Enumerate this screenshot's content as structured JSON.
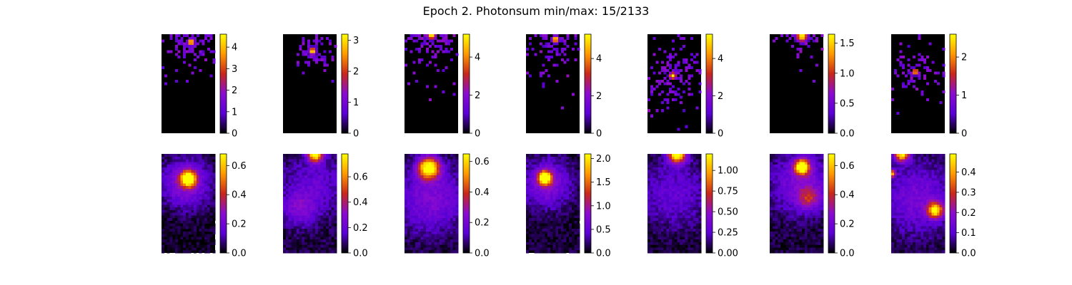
{
  "figure": {
    "title": "Epoch 2. Photonsum min/max: 15/2133",
    "colormap": "gnuplot",
    "colormap_stops": [
      "#000000",
      "#5a00d6",
      "#8a0bd0",
      "#c8281c",
      "#ff9900",
      "#ffff00"
    ]
  },
  "chart_data": [
    {
      "type": "heatmap",
      "row": 1,
      "col": 1,
      "axes_visible": false,
      "colorbar": {
        "range": [
          0,
          4.6
        ],
        "ticks": [
          "0",
          "1",
          "2",
          "3",
          "4"
        ],
        "tick_values": [
          0,
          1,
          2,
          3,
          4
        ]
      },
      "blobs": [
        {
          "cx": 0.55,
          "cy": 0.08,
          "sigma": 0.05,
          "peak": 4.6
        }
      ],
      "spread": 0.22,
      "sparse": true,
      "seed": 11
    },
    {
      "type": "heatmap",
      "row": 1,
      "col": 2,
      "axes_visible": false,
      "colorbar": {
        "range": [
          0,
          3.2
        ],
        "ticks": [
          "0",
          "1",
          "2",
          "3"
        ],
        "tick_values": [
          0,
          1,
          2,
          3
        ]
      },
      "blobs": [
        {
          "cx": 0.55,
          "cy": 0.17,
          "sigma": 0.05,
          "peak": 3.2
        }
      ],
      "spread": 0.15,
      "sparse": true,
      "seed": 23
    },
    {
      "type": "heatmap",
      "row": 1,
      "col": 3,
      "axes_visible": false,
      "colorbar": {
        "range": [
          0,
          5.2
        ],
        "ticks": [
          "0",
          "2",
          "4"
        ],
        "tick_values": [
          0,
          2,
          4
        ]
      },
      "blobs": [
        {
          "cx": 0.5,
          "cy": 0.01,
          "sigma": 0.06,
          "peak": 5.2
        }
      ],
      "spread": 0.28,
      "sparse": true,
      "seed": 37
    },
    {
      "type": "heatmap",
      "row": 1,
      "col": 4,
      "axes_visible": false,
      "colorbar": {
        "range": [
          0,
          5.3
        ],
        "ticks": [
          "0",
          "2",
          "4"
        ],
        "tick_values": [
          0,
          2,
          4
        ]
      },
      "blobs": [
        {
          "cx": 0.55,
          "cy": 0.05,
          "sigma": 0.05,
          "peak": 5.3
        }
      ],
      "spread": 0.26,
      "sparse": true,
      "seed": 41
    },
    {
      "type": "heatmap",
      "row": 1,
      "col": 5,
      "axes_visible": false,
      "colorbar": {
        "range": [
          0,
          5.3
        ],
        "ticks": [
          "0",
          "2",
          "4"
        ],
        "tick_values": [
          0,
          2,
          4
        ]
      },
      "blobs": [
        {
          "cx": 0.47,
          "cy": 0.42,
          "sigma": 0.05,
          "peak": 5.3
        }
      ],
      "spread": 0.28,
      "sparse": true,
      "seed": 53
    },
    {
      "type": "heatmap",
      "row": 1,
      "col": 6,
      "axes_visible": false,
      "colorbar": {
        "range": [
          0,
          1.65
        ],
        "ticks": [
          "0.0",
          "0.5",
          "1.0",
          "1.5"
        ],
        "tick_values": [
          0.0,
          0.5,
          1.0,
          1.5
        ]
      },
      "blobs": [
        {
          "cx": 0.6,
          "cy": 0.02,
          "sigma": 0.08,
          "peak": 1.65
        }
      ],
      "spread": 0.16,
      "sparse": true,
      "seed": 67
    },
    {
      "type": "heatmap",
      "row": 1,
      "col": 7,
      "axes_visible": false,
      "colorbar": {
        "range": [
          0,
          2.6
        ],
        "ticks": [
          "0",
          "1",
          "2"
        ],
        "tick_values": [
          0,
          1,
          2
        ]
      },
      "blobs": [
        {
          "cx": 0.45,
          "cy": 0.38,
          "sigma": 0.04,
          "peak": 2.6
        }
      ],
      "spread": 0.2,
      "sparse": true,
      "seed": 71
    },
    {
      "type": "heatmap",
      "row": 2,
      "col": 1,
      "axes_visible": false,
      "colorbar": {
        "range": [
          0,
          0.68
        ],
        "ticks": [
          "0.0",
          "0.2",
          "0.4",
          "0.6"
        ],
        "tick_values": [
          0.0,
          0.2,
          0.4,
          0.6
        ]
      },
      "blobs": [
        {
          "cx": 0.5,
          "cy": 0.25,
          "sigma": 0.1,
          "peak": 0.68
        },
        {
          "cx": 0.45,
          "cy": 0.3,
          "sigma": 0.32,
          "peak": 0.26
        }
      ],
      "floor": 0.03,
      "sparse": false,
      "seed": 83
    },
    {
      "type": "heatmap",
      "row": 2,
      "col": 2,
      "axes_visible": false,
      "colorbar": {
        "range": [
          0,
          0.78
        ],
        "ticks": [
          "0.0",
          "0.2",
          "0.4",
          "0.6"
        ],
        "tick_values": [
          0.0,
          0.2,
          0.4,
          0.6
        ]
      },
      "blobs": [
        {
          "cx": 0.6,
          "cy": 0.0,
          "sigma": 0.1,
          "peak": 0.78
        },
        {
          "cx": 0.3,
          "cy": 0.55,
          "sigma": 0.22,
          "peak": 0.2
        },
        {
          "cx": 0.6,
          "cy": 0.3,
          "sigma": 0.4,
          "peak": 0.14
        }
      ],
      "floor": 0.06,
      "sparse": false,
      "seed": 97
    },
    {
      "type": "heatmap",
      "row": 2,
      "col": 3,
      "axes_visible": false,
      "colorbar": {
        "range": [
          0,
          0.65
        ],
        "ticks": [
          "0.0",
          "0.2",
          "0.4",
          "0.6"
        ],
        "tick_values": [
          0.0,
          0.2,
          0.4,
          0.6
        ]
      },
      "blobs": [
        {
          "cx": 0.45,
          "cy": 0.14,
          "sigma": 0.14,
          "peak": 0.65
        },
        {
          "cx": 0.5,
          "cy": 0.45,
          "sigma": 0.45,
          "peak": 0.2
        }
      ],
      "floor": 0.04,
      "sparse": false,
      "seed": 101
    },
    {
      "type": "heatmap",
      "row": 2,
      "col": 4,
      "axes_visible": false,
      "colorbar": {
        "range": [
          0,
          2.1
        ],
        "ticks": [
          "0.0",
          "0.5",
          "1.0",
          "1.5",
          "2.0"
        ],
        "tick_values": [
          0.0,
          0.5,
          1.0,
          1.5,
          2.0
        ]
      },
      "blobs": [
        {
          "cx": 0.35,
          "cy": 0.24,
          "sigma": 0.09,
          "peak": 2.1
        },
        {
          "cx": 0.4,
          "cy": 0.3,
          "sigma": 0.3,
          "peak": 0.7
        }
      ],
      "floor": 0.05,
      "sparse": false,
      "seed": 113
    },
    {
      "type": "heatmap",
      "row": 2,
      "col": 5,
      "axes_visible": false,
      "colorbar": {
        "range": [
          0,
          1.2
        ],
        "ticks": [
          "0.00",
          "0.25",
          "0.50",
          "0.75",
          "1.00"
        ],
        "tick_values": [
          0.0,
          0.25,
          0.5,
          0.75,
          1.0
        ]
      },
      "blobs": [
        {
          "cx": 0.55,
          "cy": 0.0,
          "sigma": 0.12,
          "peak": 1.2
        },
        {
          "cx": 0.5,
          "cy": 0.4,
          "sigma": 0.45,
          "peak": 0.25
        }
      ],
      "floor": 0.04,
      "sparse": false,
      "seed": 127
    },
    {
      "type": "heatmap",
      "row": 2,
      "col": 6,
      "axes_visible": false,
      "colorbar": {
        "range": [
          0,
          0.68
        ],
        "ticks": [
          "0.0",
          "0.2",
          "0.4",
          "0.6"
        ],
        "tick_values": [
          0.0,
          0.2,
          0.4,
          0.6
        ]
      },
      "blobs": [
        {
          "cx": 0.6,
          "cy": 0.13,
          "sigma": 0.1,
          "peak": 0.68
        },
        {
          "cx": 0.72,
          "cy": 0.45,
          "sigma": 0.14,
          "peak": 0.24
        },
        {
          "cx": 0.6,
          "cy": 0.3,
          "sigma": 0.4,
          "peak": 0.2
        }
      ],
      "floor": 0.05,
      "sparse": false,
      "seed": 131
    },
    {
      "type": "heatmap",
      "row": 2,
      "col": 7,
      "axes_visible": false,
      "colorbar": {
        "range": [
          0,
          0.49
        ],
        "ticks": [
          "0.0",
          "0.1",
          "0.2",
          "0.3",
          "0.4"
        ],
        "tick_values": [
          0.0,
          0.1,
          0.2,
          0.3,
          0.4
        ]
      },
      "blobs": [
        {
          "cx": 0.2,
          "cy": 0.0,
          "sigma": 0.1,
          "peak": 0.45
        },
        {
          "cx": 0.82,
          "cy": 0.57,
          "sigma": 0.1,
          "peak": 0.42
        },
        {
          "cx": 0.0,
          "cy": 0.2,
          "sigma": 0.05,
          "peak": 0.4
        },
        {
          "cx": 0.5,
          "cy": 0.45,
          "sigma": 0.45,
          "peak": 0.13
        }
      ],
      "floor": 0.05,
      "sparse": false,
      "seed": 149
    }
  ]
}
